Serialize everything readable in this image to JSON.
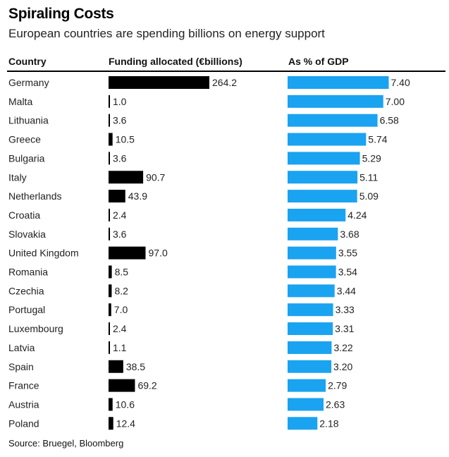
{
  "title": "Spiraling Costs",
  "subtitle": "European countries are spending billions on energy support",
  "headers": {
    "country": "Country",
    "funding": "Funding allocated (€billions)",
    "gdp": "As % of GDP"
  },
  "source": "Source: Bruegel, Bloomberg",
  "colors": {
    "funding_bar": "#000000",
    "gdp_bar": "#1aa3f0"
  },
  "chart_data": {
    "type": "table",
    "title": "Spiraling Costs",
    "subtitle": "European countries are spending billions on energy support",
    "categories": [
      "Germany",
      "Malta",
      "Lithuania",
      "Greece",
      "Bulgaria",
      "Italy",
      "Netherlands",
      "Croatia",
      "Slovakia",
      "United Kingdom",
      "Romania",
      "Czechia",
      "Portugal",
      "Luxembourg",
      "Latvia",
      "Spain",
      "France",
      "Austria",
      "Poland"
    ],
    "series": [
      {
        "name": "Funding allocated (€billions)",
        "values": [
          264.2,
          1.0,
          3.6,
          10.5,
          3.6,
          90.7,
          43.9,
          2.4,
          3.6,
          97.0,
          8.5,
          8.2,
          7.0,
          2.4,
          1.1,
          38.5,
          69.2,
          10.6,
          12.4
        ],
        "labels": [
          "264.2",
          "1.0",
          "3.6",
          "10.5",
          "3.6",
          "90.7",
          "43.9",
          "2.4",
          "3.6",
          "97.0",
          "8.5",
          "8.2",
          "7.0",
          "2.4",
          "1.1",
          "38.5",
          "69.2",
          "10.6",
          "12.4"
        ]
      },
      {
        "name": "As % of GDP",
        "values": [
          7.4,
          7.0,
          6.58,
          5.74,
          5.29,
          5.11,
          5.09,
          4.24,
          3.68,
          3.55,
          3.54,
          3.44,
          3.33,
          3.31,
          3.22,
          3.2,
          2.79,
          2.63,
          2.18
        ],
        "labels": [
          "7.40",
          "7.00",
          "6.58",
          "5.74",
          "5.29",
          "5.11",
          "5.09",
          "4.24",
          "3.68",
          "3.55",
          "3.54",
          "3.44",
          "3.33",
          "3.31",
          "3.22",
          "3.20",
          "2.79",
          "2.63",
          "2.18"
        ]
      }
    ]
  }
}
